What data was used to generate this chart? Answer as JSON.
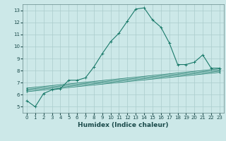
{
  "xlabel": "Humidex (Indice chaleur)",
  "ylabel": "",
  "background_color": "#cce8e8",
  "grid_color": "#aacccc",
  "line_color": "#1a7a6a",
  "xlim": [
    -0.5,
    23.5
  ],
  "ylim": [
    4.5,
    13.5
  ],
  "xticks": [
    0,
    1,
    2,
    3,
    4,
    5,
    6,
    7,
    8,
    9,
    10,
    11,
    12,
    13,
    14,
    15,
    16,
    17,
    18,
    19,
    20,
    21,
    22,
    23
  ],
  "yticks": [
    5,
    6,
    7,
    8,
    9,
    10,
    11,
    12,
    13
  ],
  "series": [
    [
      0,
      5.5
    ],
    [
      1,
      5.0
    ],
    [
      2,
      6.1
    ],
    [
      3,
      6.4
    ],
    [
      4,
      6.5
    ],
    [
      5,
      7.2
    ],
    [
      6,
      7.2
    ],
    [
      7,
      7.4
    ],
    [
      8,
      8.3
    ],
    [
      9,
      9.4
    ],
    [
      10,
      10.4
    ],
    [
      11,
      11.1
    ],
    [
      12,
      12.1
    ],
    [
      13,
      13.1
    ],
    [
      14,
      13.2
    ],
    [
      15,
      12.2
    ],
    [
      16,
      11.6
    ],
    [
      17,
      10.3
    ],
    [
      18,
      8.5
    ],
    [
      19,
      8.5
    ],
    [
      20,
      8.7
    ],
    [
      21,
      9.3
    ],
    [
      22,
      8.2
    ],
    [
      23,
      8.2
    ]
  ],
  "flat_series": [
    [
      [
        0,
        6.55
      ],
      [
        23,
        8.15
      ]
    ],
    [
      [
        0,
        6.45
      ],
      [
        23,
        8.05
      ]
    ],
    [
      [
        0,
        6.35
      ],
      [
        23,
        7.95
      ]
    ],
    [
      [
        0,
        6.25
      ],
      [
        23,
        7.85
      ]
    ]
  ],
  "tick_fontsize": 5.0,
  "xlabel_fontsize": 6.5,
  "line_width": 0.8,
  "marker_size": 2.5
}
